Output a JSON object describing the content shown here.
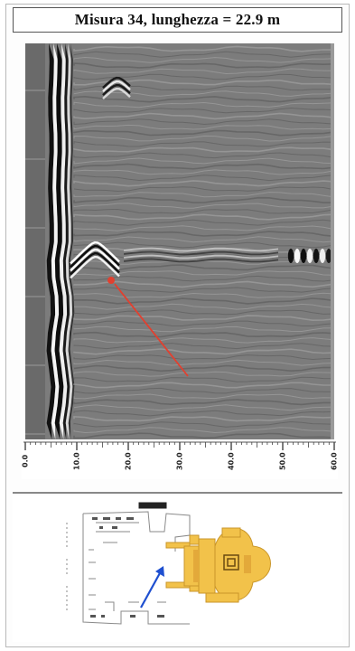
{
  "title": "Misura 34, lunghezza = 22.9 m",
  "scale_labels": [
    "0.0",
    "10.0",
    "20.0",
    "30.0",
    "40.0",
    "50.0",
    "60.0"
  ],
  "colors": {
    "radargram_background": "#7c7c7c",
    "arrow_radargram": "#e2402f",
    "arrow_plan": "#1e4fd0",
    "plan_fill": "#f2c24a",
    "plan_lines": "#888888"
  }
}
